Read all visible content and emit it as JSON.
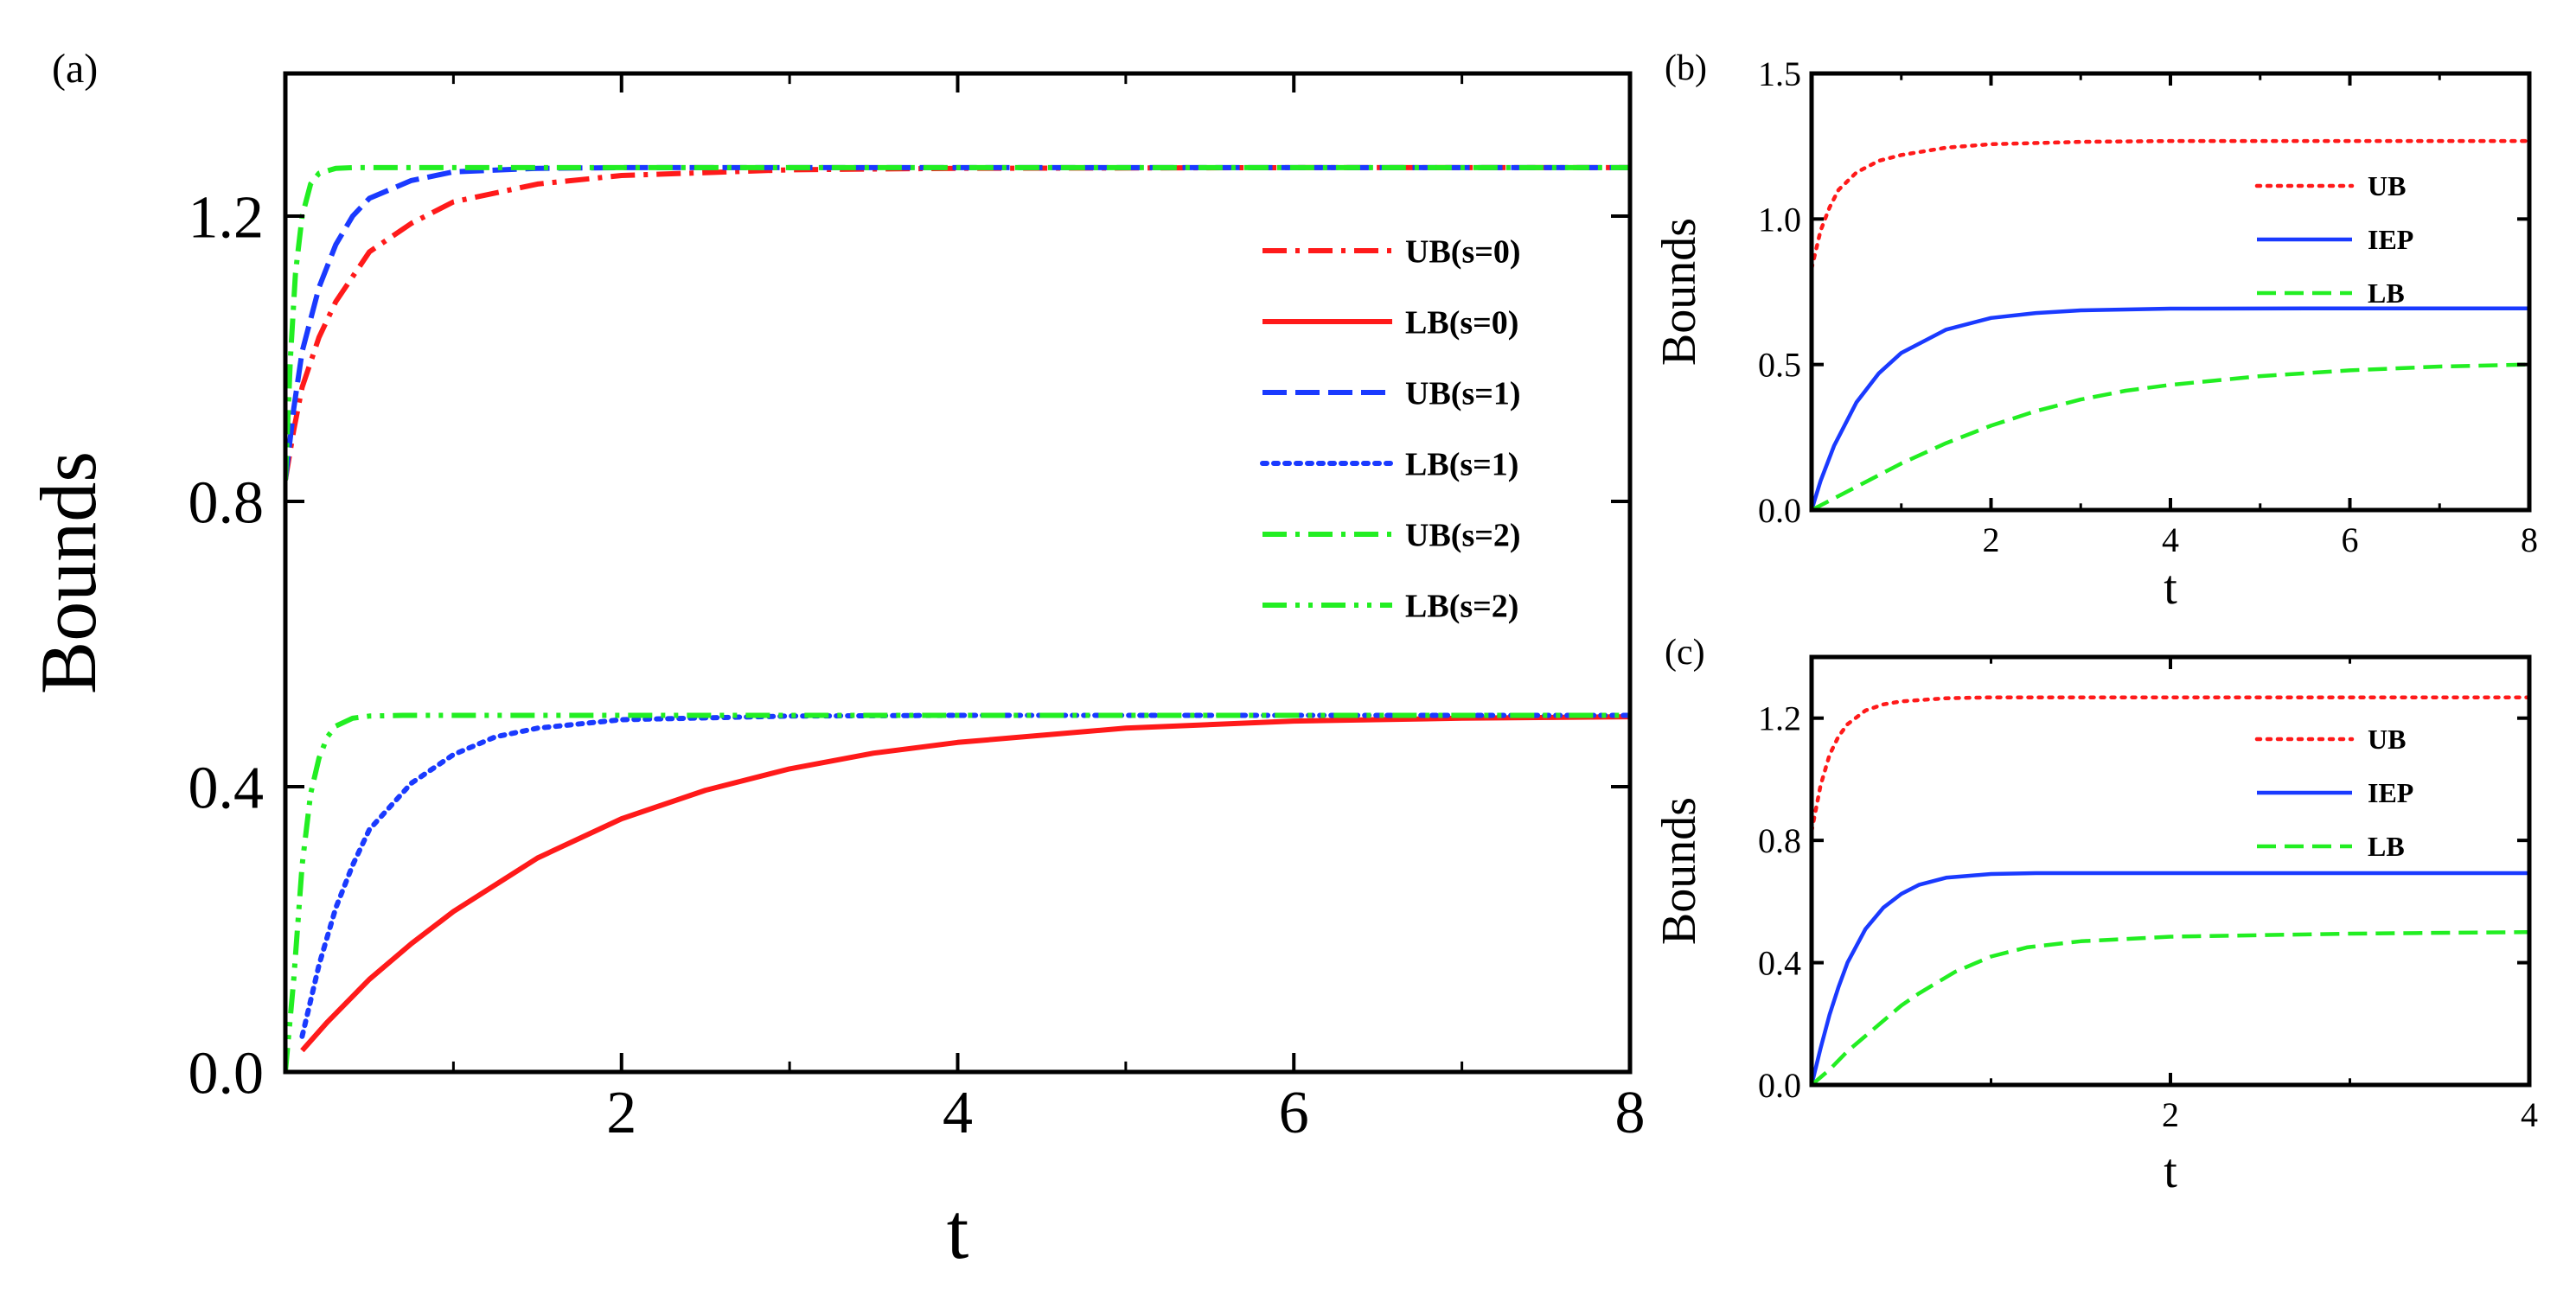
{
  "chart_data": [
    {
      "id": "a",
      "panel_label": "(a)",
      "type": "line",
      "title": "",
      "xlabel": "t",
      "ylabel": "Bounds",
      "xlim": [
        0,
        8
      ],
      "ylim": [
        0,
        1.4
      ],
      "xticks": [
        2,
        4,
        6,
        8
      ],
      "xtick_labels": [
        "2",
        "4",
        "6",
        "8"
      ],
      "yticks": [
        0,
        0.4,
        0.8,
        1.2
      ],
      "ytick_labels": [
        "0.0",
        "0.4",
        "0.8",
        "1.2"
      ],
      "grid": false,
      "legend_position": "right",
      "series": [
        {
          "name": "UB(s=0)",
          "color": "#ff1a1a",
          "style": "dashdot",
          "x": [
            0,
            0.05,
            0.1,
            0.2,
            0.3,
            0.5,
            0.75,
            1,
            1.5,
            2,
            3,
            4,
            6,
            8
          ],
          "y": [
            0.83,
            0.9,
            0.96,
            1.03,
            1.08,
            1.15,
            1.19,
            1.22,
            1.245,
            1.257,
            1.265,
            1.267,
            1.268,
            1.268
          ]
        },
        {
          "name": "LB(s=0)",
          "color": "#ff1a1a",
          "style": "solid",
          "x": [
            0.1,
            0.25,
            0.5,
            0.75,
            1,
            1.5,
            2,
            2.5,
            3,
            3.5,
            4,
            5,
            6,
            7,
            8
          ],
          "y": [
            0.03,
            0.07,
            0.13,
            0.18,
            0.225,
            0.3,
            0.355,
            0.395,
            0.425,
            0.447,
            0.462,
            0.482,
            0.492,
            0.496,
            0.498
          ]
        },
        {
          "name": "UB(s=1)",
          "color": "#1a3aff",
          "style": "dashed",
          "x": [
            0,
            0.05,
            0.1,
            0.2,
            0.3,
            0.4,
            0.5,
            0.75,
            1,
            1.5,
            2,
            4,
            8
          ],
          "y": [
            0.83,
            0.93,
            1.01,
            1.1,
            1.16,
            1.2,
            1.225,
            1.25,
            1.262,
            1.267,
            1.268,
            1.268,
            1.268
          ]
        },
        {
          "name": "LB(s=1)",
          "color": "#1a3aff",
          "style": "dotted",
          "x": [
            0.1,
            0.15,
            0.2,
            0.3,
            0.4,
            0.5,
            0.75,
            1,
            1.25,
            1.5,
            2,
            3,
            4,
            8
          ],
          "y": [
            0.05,
            0.1,
            0.15,
            0.23,
            0.29,
            0.34,
            0.405,
            0.445,
            0.47,
            0.482,
            0.494,
            0.499,
            0.5,
            0.5
          ]
        },
        {
          "name": "UB(s=2)",
          "color": "#22ee22",
          "style": "dashdot",
          "x": [
            0,
            0.03,
            0.06,
            0.1,
            0.15,
            0.2,
            0.3,
            0.4,
            0.6,
            1,
            8
          ],
          "y": [
            0.83,
            1.0,
            1.12,
            1.2,
            1.245,
            1.26,
            1.267,
            1.268,
            1.268,
            1.268,
            1.268
          ]
        },
        {
          "name": "LB(s=2)",
          "color": "#22ee22",
          "style": "dashdotdot",
          "x": [
            0,
            0.05,
            0.1,
            0.15,
            0.2,
            0.25,
            0.3,
            0.4,
            0.5,
            0.7,
            1,
            8
          ],
          "y": [
            0,
            0.13,
            0.29,
            0.39,
            0.44,
            0.47,
            0.485,
            0.496,
            0.499,
            0.5,
            0.5,
            0.5
          ]
        }
      ]
    },
    {
      "id": "b",
      "panel_label": "(b)",
      "type": "line",
      "title": "",
      "xlabel": "t",
      "ylabel": "Bounds",
      "xlim": [
        0,
        8
      ],
      "ylim": [
        0,
        1.5
      ],
      "xticks": [
        2,
        4,
        6,
        8
      ],
      "xtick_labels": [
        "2",
        "4",
        "6",
        "8"
      ],
      "yticks": [
        0,
        0.5,
        1.0,
        1.5
      ],
      "ytick_labels": [
        "0.0",
        "0.5",
        "1.0",
        "1.5"
      ],
      "grid": false,
      "legend_position": "top-right",
      "series": [
        {
          "name": "UB",
          "color": "#ff1a1a",
          "style": "dotted",
          "x": [
            0,
            0.1,
            0.2,
            0.3,
            0.5,
            0.75,
            1,
            1.5,
            2,
            3,
            4,
            8
          ],
          "y": [
            0.83,
            0.96,
            1.04,
            1.1,
            1.16,
            1.2,
            1.22,
            1.245,
            1.257,
            1.265,
            1.268,
            1.268
          ]
        },
        {
          "name": "IEP",
          "color": "#1a3aff",
          "style": "solid",
          "x": [
            0,
            0.1,
            0.25,
            0.5,
            0.75,
            1,
            1.5,
            2,
            2.5,
            3,
            4,
            6,
            8
          ],
          "y": [
            0,
            0.1,
            0.22,
            0.37,
            0.47,
            0.54,
            0.62,
            0.66,
            0.677,
            0.686,
            0.692,
            0.693,
            0.693
          ]
        },
        {
          "name": "LB",
          "color": "#22ee22",
          "style": "dashed",
          "x": [
            0,
            0.5,
            1,
            1.5,
            2,
            2.5,
            3,
            3.5,
            4,
            5,
            6,
            7,
            8
          ],
          "y": [
            0,
            0.08,
            0.16,
            0.23,
            0.29,
            0.34,
            0.38,
            0.41,
            0.43,
            0.46,
            0.48,
            0.493,
            0.5
          ]
        }
      ]
    },
    {
      "id": "c",
      "panel_label": "(c)",
      "type": "line",
      "title": "",
      "xlabel": "t",
      "ylabel": "Bounds",
      "xlim": [
        0,
        4
      ],
      "ylim": [
        0,
        1.4
      ],
      "xticks": [
        2,
        4
      ],
      "xtick_labels": [
        "2",
        "4"
      ],
      "yticks": [
        0,
        0.4,
        0.8,
        1.2
      ],
      "ytick_labels": [
        "0.0",
        "0.4",
        "0.8",
        "1.2"
      ],
      "grid": false,
      "legend_position": "top-right",
      "series": [
        {
          "name": "UB",
          "color": "#ff1a1a",
          "style": "dotted",
          "x": [
            0,
            0.05,
            0.1,
            0.15,
            0.2,
            0.3,
            0.4,
            0.5,
            0.75,
            1,
            1.5,
            2,
            4
          ],
          "y": [
            0.83,
            0.98,
            1.08,
            1.14,
            1.18,
            1.225,
            1.245,
            1.255,
            1.265,
            1.268,
            1.268,
            1.268,
            1.268
          ]
        },
        {
          "name": "IEP",
          "color": "#1a3aff",
          "style": "solid",
          "x": [
            0,
            0.05,
            0.1,
            0.15,
            0.2,
            0.3,
            0.4,
            0.5,
            0.6,
            0.75,
            1,
            1.25,
            1.5,
            2,
            4
          ],
          "y": [
            0,
            0.12,
            0.23,
            0.32,
            0.4,
            0.51,
            0.58,
            0.625,
            0.655,
            0.678,
            0.69,
            0.693,
            0.693,
            0.693,
            0.693
          ]
        },
        {
          "name": "LB",
          "color": "#22ee22",
          "style": "dashed",
          "x": [
            0,
            0.1,
            0.2,
            0.3,
            0.4,
            0.5,
            0.6,
            0.8,
            1,
            1.2,
            1.5,
            2,
            3,
            4
          ],
          "y": [
            0,
            0.05,
            0.11,
            0.16,
            0.21,
            0.26,
            0.3,
            0.37,
            0.42,
            0.45,
            0.47,
            0.485,
            0.495,
            0.5
          ]
        }
      ]
    }
  ]
}
